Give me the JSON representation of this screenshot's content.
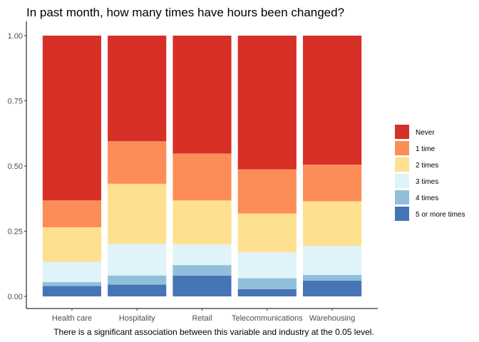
{
  "chart_data": {
    "type": "bar",
    "stacked": true,
    "normalized": true,
    "title": "In past month, how many times have hours been changed?",
    "caption": "There is a significant association between this variable and industry at the 0.05 level.",
    "xlabel": "",
    "ylabel": "",
    "categories": [
      "Health care",
      "Hospitality",
      "Retail",
      "Telecommunications",
      "Warehousing"
    ],
    "ylim": [
      0,
      1
    ],
    "yticks": [
      0.0,
      0.25,
      0.5,
      0.75,
      1.0
    ],
    "ytick_labels": [
      "0.00",
      "0.25",
      "0.50",
      "0.75",
      "1.00"
    ],
    "grid": false,
    "legend_position": "right",
    "series": [
      {
        "name": "5 or more times",
        "color": "#4575b4",
        "values": [
          0.04,
          0.045,
          0.08,
          0.028,
          0.06
        ]
      },
      {
        "name": "4 times",
        "color": "#91bfdb",
        "values": [
          0.015,
          0.035,
          0.04,
          0.042,
          0.022
        ]
      },
      {
        "name": "3 times",
        "color": "#e0f3f8",
        "values": [
          0.077,
          0.122,
          0.08,
          0.1,
          0.112
        ]
      },
      {
        "name": "2 times",
        "color": "#fee090",
        "values": [
          0.133,
          0.23,
          0.168,
          0.148,
          0.171
        ]
      },
      {
        "name": "1 time",
        "color": "#fc8d59",
        "values": [
          0.103,
          0.163,
          0.18,
          0.169,
          0.14
        ]
      },
      {
        "name": "Never",
        "color": "#d73027",
        "values": [
          0.632,
          0.405,
          0.452,
          0.513,
          0.495
        ]
      }
    ],
    "legend_order": [
      "Never",
      "1 time",
      "2 times",
      "3 times",
      "4 times",
      "5 or more times"
    ]
  }
}
